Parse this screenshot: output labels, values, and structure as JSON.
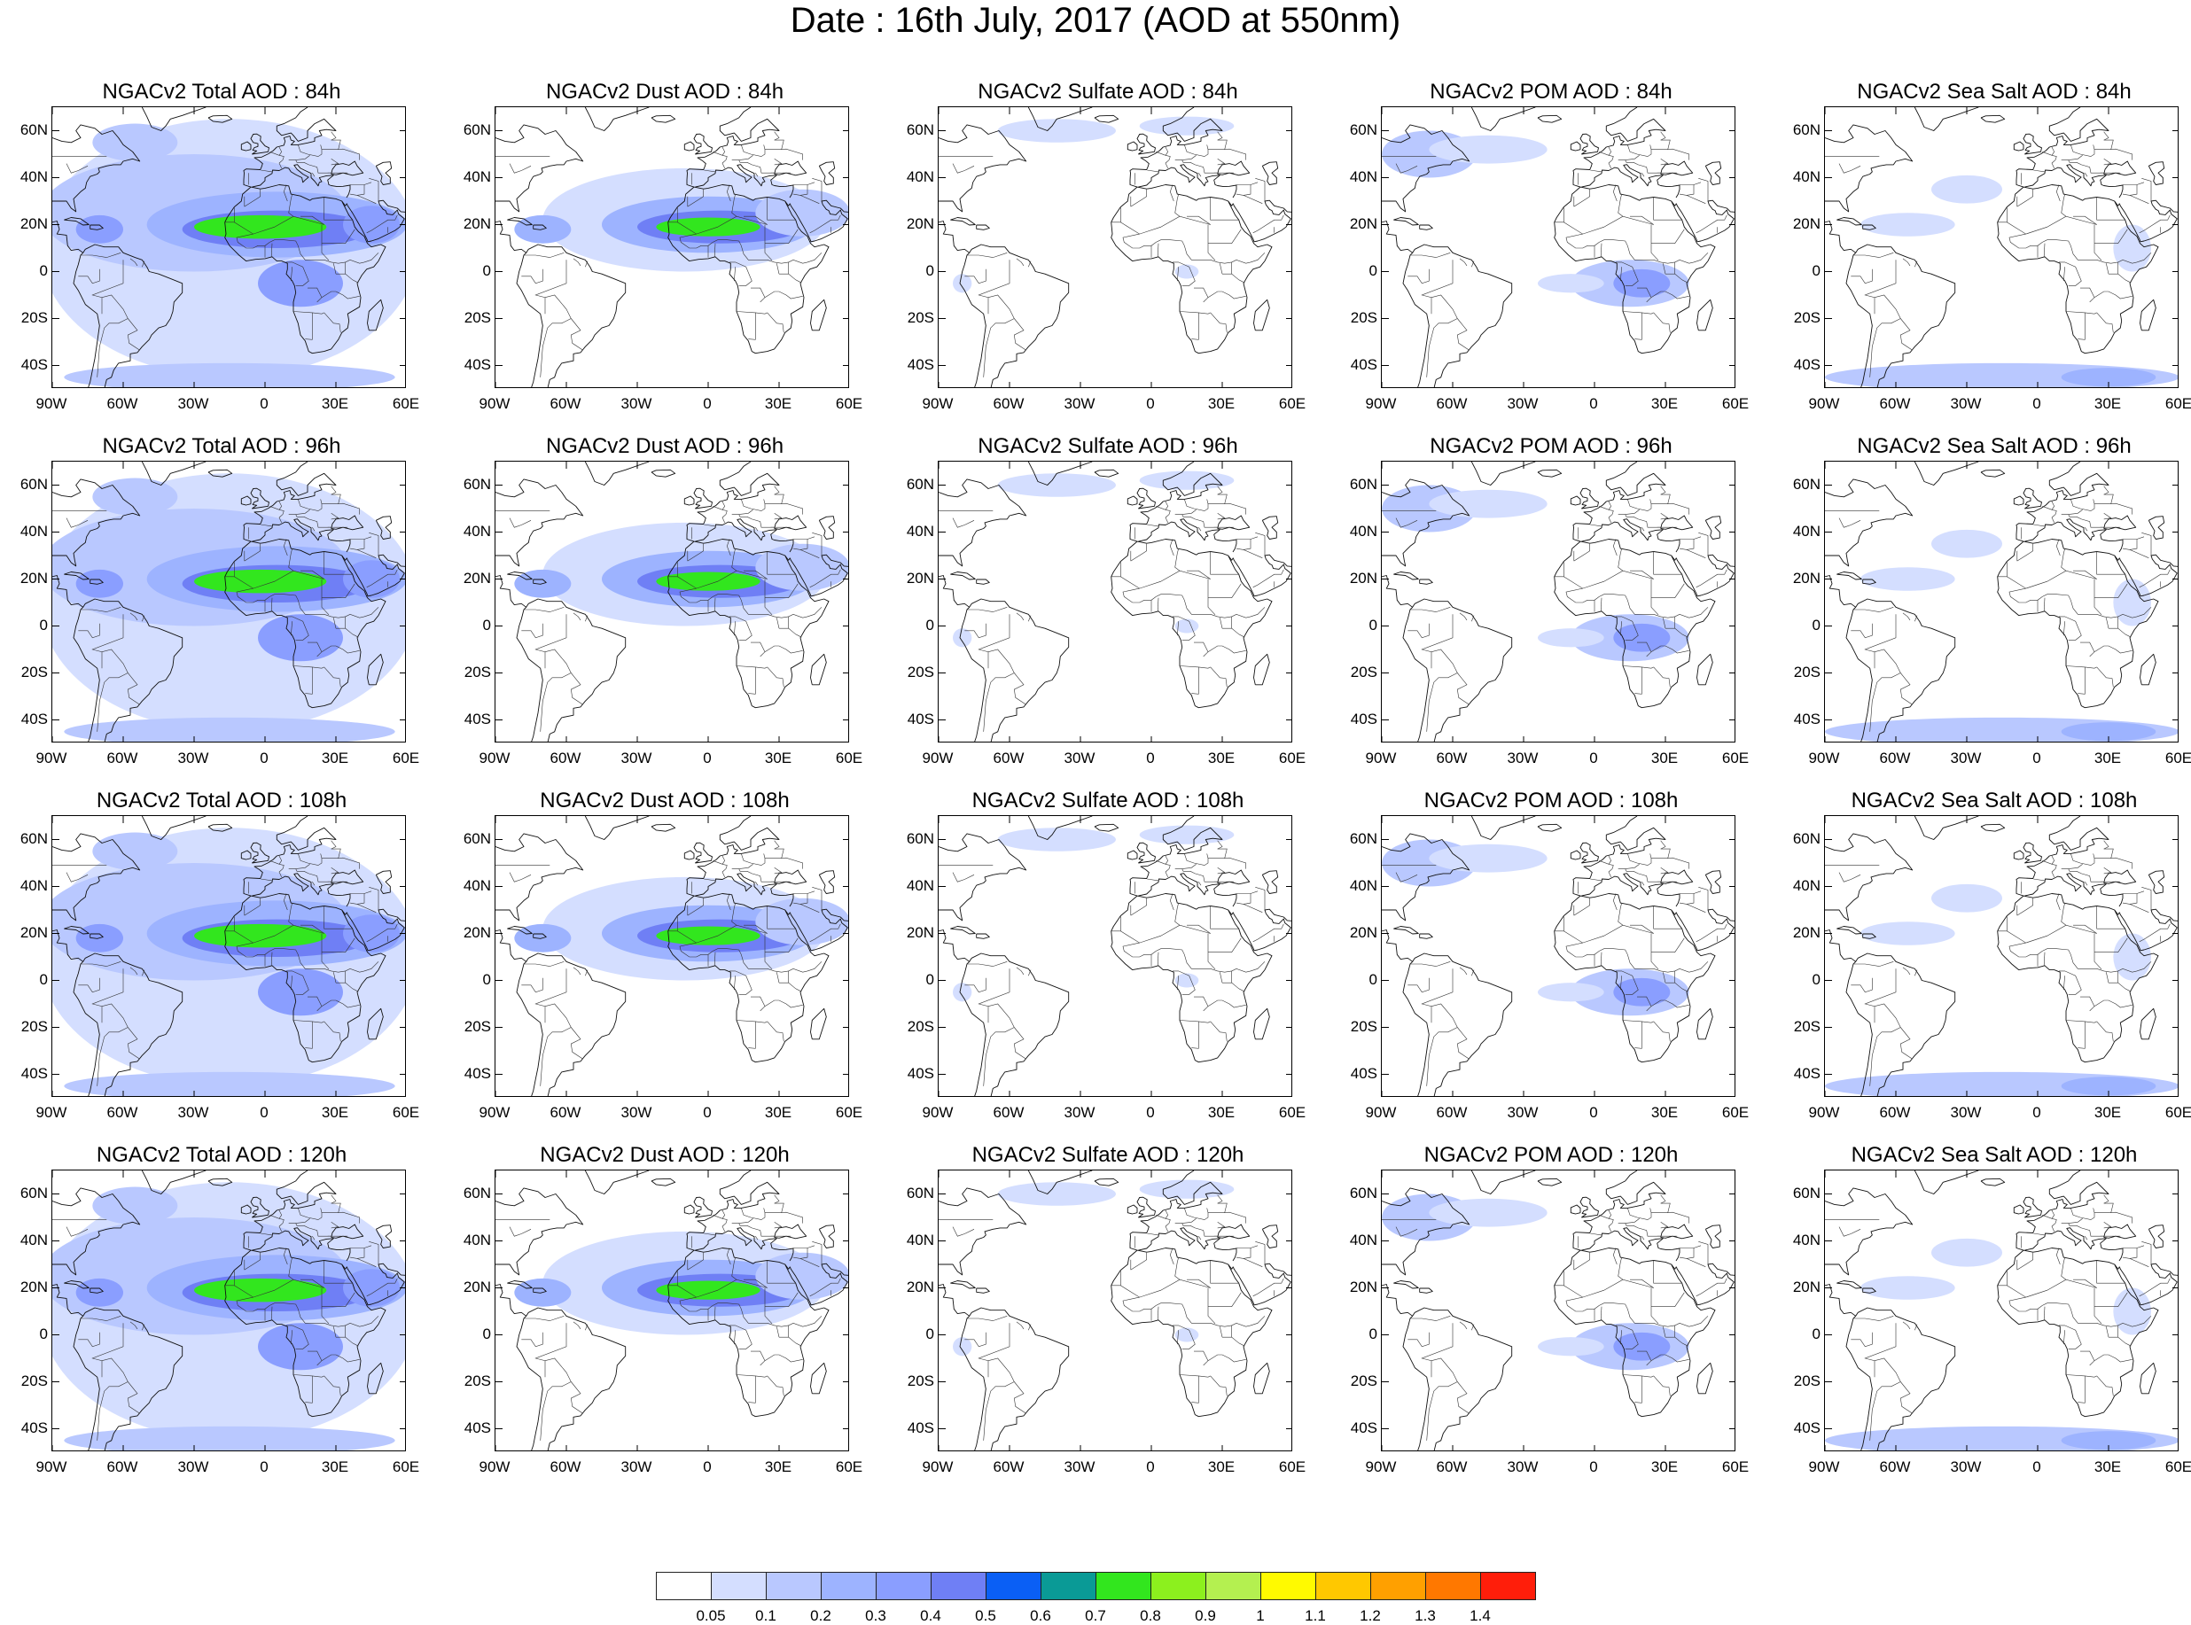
{
  "figure_title": "Date : 16th July, 2017 (AOD at 550nm)",
  "lat_ticks": [
    "60N",
    "40N",
    "20N",
    "0",
    "20S",
    "40S"
  ],
  "lon_ticks": [
    "90W",
    "60W",
    "30W",
    "0",
    "30E",
    "60E"
  ],
  "panels": [
    {
      "title": "NGACv2 Total AOD : 84h",
      "species": "total"
    },
    {
      "title": "NGACv2 Dust AOD : 84h",
      "species": "dust"
    },
    {
      "title": "NGACv2 Sulfate AOD : 84h",
      "species": "sulfate"
    },
    {
      "title": "NGACv2 POM AOD : 84h",
      "species": "pom"
    },
    {
      "title": "NGACv2 Sea Salt AOD : 84h",
      "species": "seasalt"
    },
    {
      "title": "NGACv2 Total AOD : 96h",
      "species": "total"
    },
    {
      "title": "NGACv2 Dust AOD : 96h",
      "species": "dust"
    },
    {
      "title": "NGACv2 Sulfate AOD : 96h",
      "species": "sulfate"
    },
    {
      "title": "NGACv2 POM AOD : 96h",
      "species": "pom"
    },
    {
      "title": "NGACv2 Sea Salt AOD : 96h",
      "species": "seasalt"
    },
    {
      "title": "NGACv2 Total AOD : 108h",
      "species": "total"
    },
    {
      "title": "NGACv2 Dust AOD : 108h",
      "species": "dust"
    },
    {
      "title": "NGACv2 Sulfate AOD : 108h",
      "species": "sulfate"
    },
    {
      "title": "NGACv2 POM AOD : 108h",
      "species": "pom"
    },
    {
      "title": "NGACv2 Sea Salt AOD : 108h",
      "species": "seasalt"
    },
    {
      "title": "NGACv2 Total AOD : 120h",
      "species": "total"
    },
    {
      "title": "NGACv2 Dust AOD : 120h",
      "species": "dust"
    },
    {
      "title": "NGACv2 Sulfate AOD : 120h",
      "species": "sulfate"
    },
    {
      "title": "NGACv2 POM AOD : 120h",
      "species": "pom"
    },
    {
      "title": "NGACv2 Sea Salt  AOD : 120h",
      "species": "seasalt"
    }
  ],
  "colorbar": {
    "labels": [
      "0.05",
      "0.1",
      "0.2",
      "0.3",
      "0.4",
      "0.5",
      "0.6",
      "0.7",
      "0.8",
      "0.9",
      "1",
      "1.1",
      "1.2",
      "1.3",
      "1.4"
    ],
    "colors": [
      "#ffffff",
      "#d4deff",
      "#b9c8ff",
      "#9db3ff",
      "#8a9eff",
      "#6f7ff5",
      "#0a5ff5",
      "#0a9a96",
      "#32e61e",
      "#8cf01e",
      "#b4f050",
      "#fffa00",
      "#ffc800",
      "#ffa000",
      "#ff7800",
      "#ff1e0a"
    ]
  }
}
